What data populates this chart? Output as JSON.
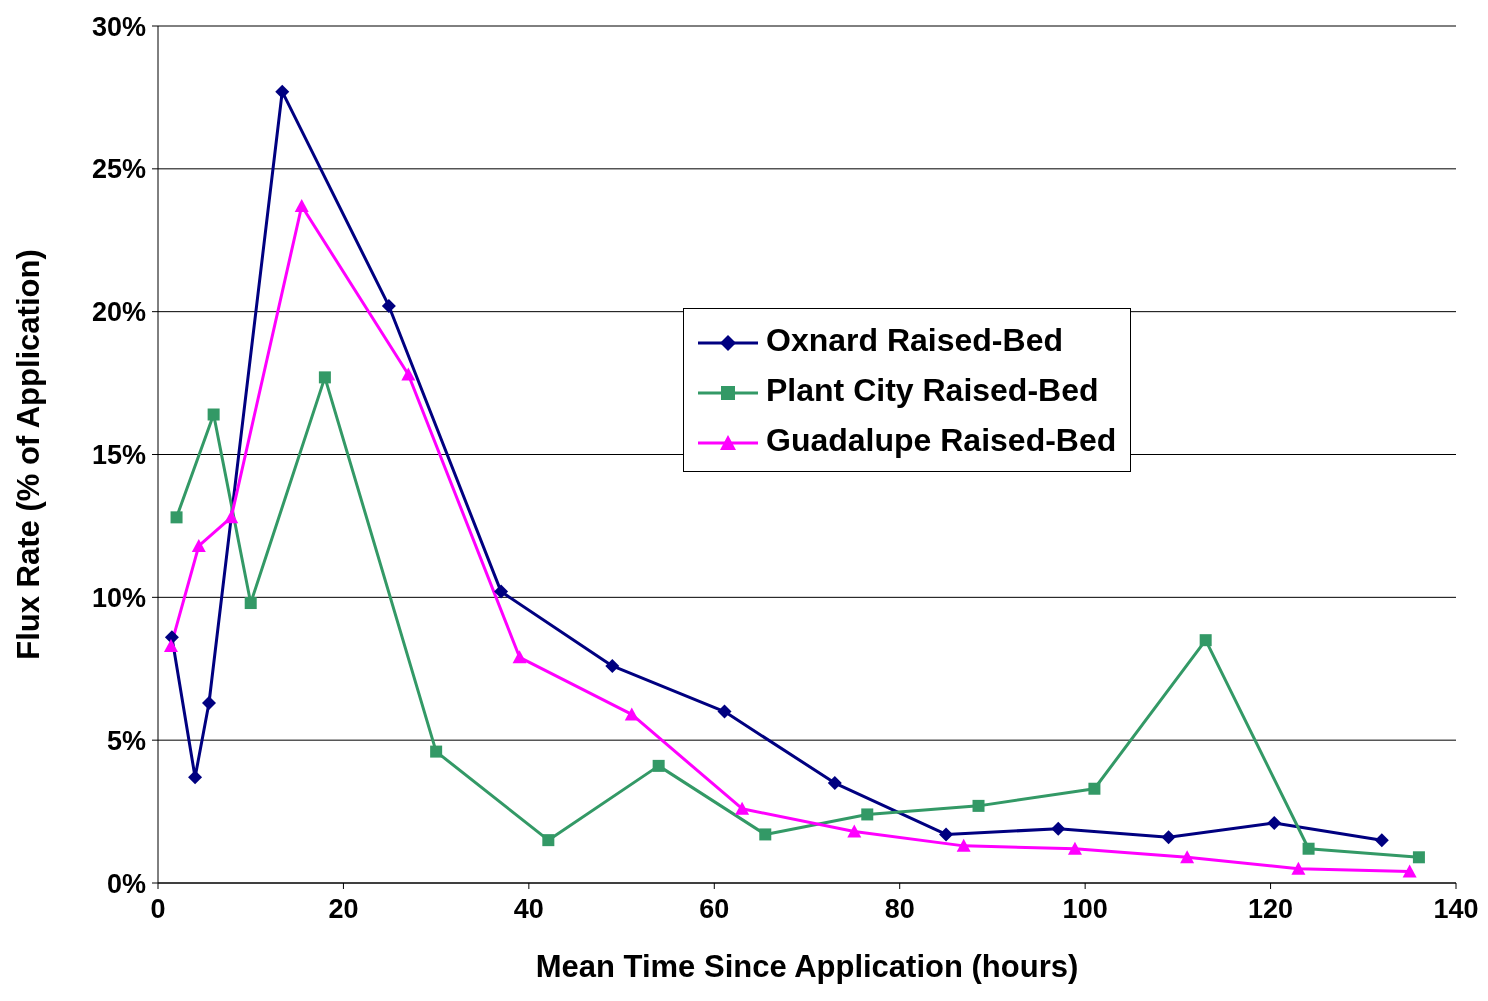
{
  "chart_data": {
    "type": "line",
    "xlabel": "Mean Time Since Application (hours)",
    "ylabel": "Flux Rate (% of Application)",
    "xlim": [
      0,
      140
    ],
    "xticks": [
      0,
      20,
      40,
      60,
      80,
      100,
      120,
      140
    ],
    "ylim": [
      0,
      30
    ],
    "yticks": [
      {
        "value": 0,
        "label": "0%"
      },
      {
        "value": 5,
        "label": "5%"
      },
      {
        "value": 10,
        "label": "10%"
      },
      {
        "value": 15,
        "label": "15%"
      },
      {
        "value": 20,
        "label": "20%"
      },
      {
        "value": 25,
        "label": "25%"
      },
      {
        "value": 30,
        "label": "30%"
      }
    ],
    "grid": "y",
    "legend": "center",
    "line_style": "solid",
    "series": [
      {
        "name": "Oxnard Raised-Bed",
        "color": "#000080",
        "marker": "diamond",
        "x": [
          1.5,
          4.0,
          5.5,
          13.4,
          24.9,
          37.0,
          49.0,
          61.1,
          73.0,
          85.0,
          97.1,
          109.0,
          120.4,
          132.0
        ],
        "values": [
          8.6,
          3.7,
          6.3,
          27.7,
          20.2,
          10.2,
          7.6,
          6.0,
          3.5,
          1.7,
          1.9,
          1.6,
          2.1,
          1.5
        ]
      },
      {
        "name": "Plant City Raised-Bed",
        "color": "#339966",
        "marker": "square",
        "x": [
          2.0,
          6.0,
          10.0,
          18.0,
          30.0,
          42.1,
          54.0,
          65.5,
          76.5,
          88.5,
          101.0,
          113.0,
          124.1,
          136.0
        ],
        "values": [
          12.8,
          16.4,
          9.8,
          17.7,
          4.6,
          1.5,
          4.1,
          1.7,
          2.4,
          2.7,
          3.3,
          8.5,
          1.2,
          0.9
        ]
      },
      {
        "name": "Guadalupe Raised-Bed",
        "color": "#ff00ff",
        "marker": "triangle",
        "x": [
          1.4,
          4.4,
          7.9,
          15.5,
          27.0,
          39.0,
          51.1,
          63.0,
          75.1,
          86.9,
          98.9,
          111.0,
          123.0,
          135.0
        ],
        "values": [
          8.3,
          11.8,
          12.8,
          23.7,
          17.8,
          7.9,
          5.9,
          2.6,
          1.8,
          1.3,
          1.2,
          0.9,
          0.5,
          0.4
        ]
      }
    ]
  }
}
